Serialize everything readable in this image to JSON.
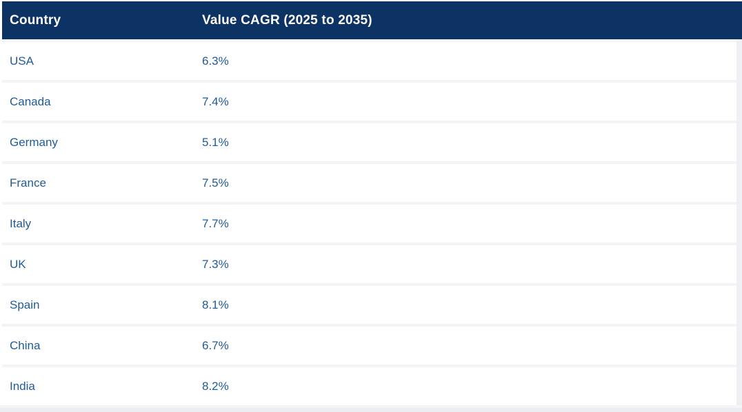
{
  "table": {
    "header": {
      "country": "Country",
      "value_cagr": "Value CAGR (2025 to 2035)"
    },
    "rows": [
      {
        "country": "USA",
        "cagr": "6.3%"
      },
      {
        "country": "Canada",
        "cagr": "7.4%"
      },
      {
        "country": "Germany",
        "cagr": "5.1%"
      },
      {
        "country": "France",
        "cagr": "7.5%"
      },
      {
        "country": "Italy",
        "cagr": "7.7%"
      },
      {
        "country": "UK",
        "cagr": "7.3%"
      },
      {
        "country": "Spain",
        "cagr": "8.1%"
      },
      {
        "country": "China",
        "cagr": "6.7%"
      },
      {
        "country": "India",
        "cagr": "8.2%"
      }
    ]
  },
  "colors": {
    "header-bg": "#0d3364",
    "header-text": "#ffffff",
    "cell-text": "#1f5b99",
    "row-bg": "#ffffff",
    "separator": "#f3f4f6",
    "page-bg": "#ffffff",
    "band-top": "#f4f5f7",
    "band-bottom": "#ebedf1",
    "scrollbar-track": "#eef0f4"
  },
  "chart_data": {
    "type": "table",
    "columns": [
      "Country",
      "Value CAGR (2025 to 2035)"
    ],
    "rows": [
      [
        "USA",
        "6.3%"
      ],
      [
        "Canada",
        "7.4%"
      ],
      [
        "Germany",
        "5.1%"
      ],
      [
        "France",
        "7.5%"
      ],
      [
        "Italy",
        "7.7%"
      ],
      [
        "UK",
        "7.3%"
      ],
      [
        "Spain",
        "8.1%"
      ],
      [
        "China",
        "6.7%"
      ],
      [
        "India",
        "8.2%"
      ]
    ]
  }
}
